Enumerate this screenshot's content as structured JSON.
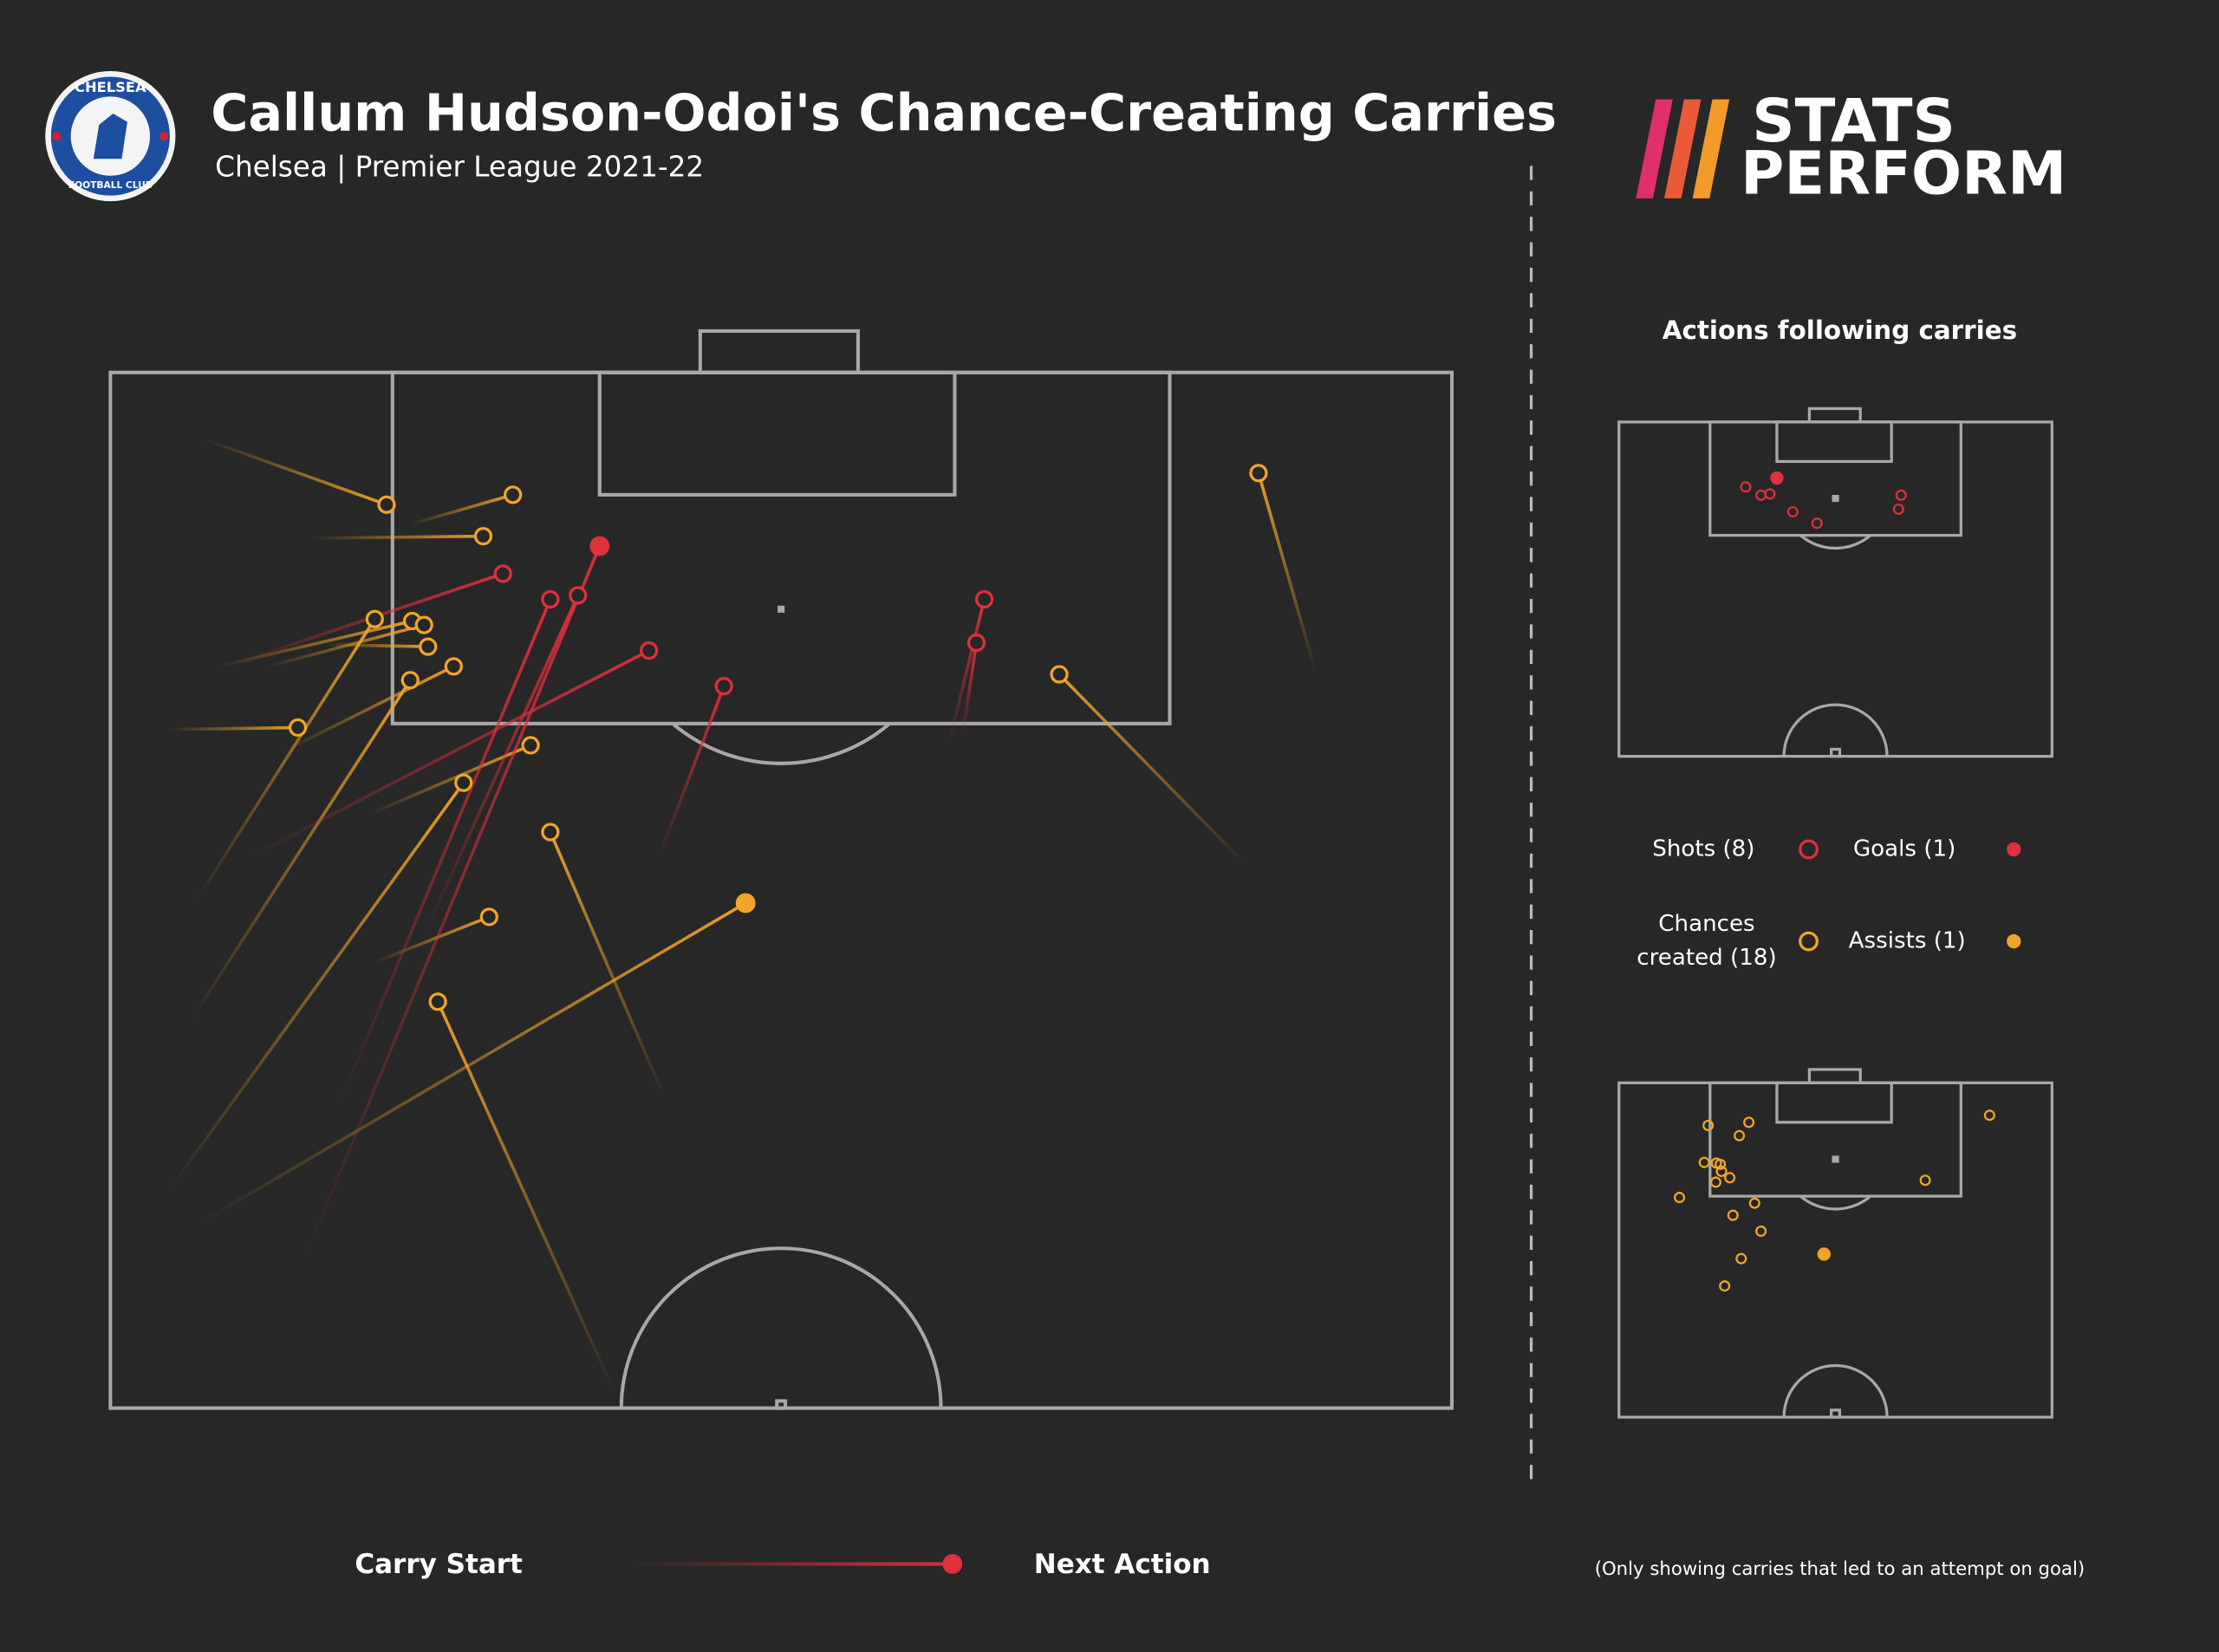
{
  "header": {
    "title": "Callum Hudson-Odoi's Chance-Creating Carries",
    "subtitle": "Chelsea | Premier League 2021-22",
    "crest_top": "CHELSEA",
    "crest_bottom": "FOOTBALL CLUB"
  },
  "brand": {
    "line1": "STATS",
    "line2": "PERFORM"
  },
  "side_title": "Actions following carries",
  "legend": {
    "shots": "Shots (8)",
    "goals": "Goals (1)",
    "chances": [
      "Chances",
      "created (18)"
    ],
    "assists": "Assists (1)"
  },
  "key": {
    "start": "Carry Start",
    "end": "Next Action"
  },
  "note": "(Only showing carries that led to an attempt on goal)",
  "shots": [
    {
      "start_x": 9.8,
      "start_y": 45.0,
      "end_x": 24.8,
      "end_y": 8.8,
      "goal": true
    },
    {
      "start_x": 5.9,
      "start_y": 14.9,
      "end_x": 19.9,
      "end_y": 10.2,
      "goal": false
    },
    {
      "start_x": 11.6,
      "start_y": 37.1,
      "end_x": 22.3,
      "end_y": 11.5,
      "goal": false
    },
    {
      "start_x": 15.9,
      "start_y": 28.5,
      "end_x": 23.7,
      "end_y": 11.3,
      "goal": false
    },
    {
      "start_x": 7.0,
      "start_y": 24.6,
      "end_x": 27.3,
      "end_y": 14.1,
      "goal": false
    },
    {
      "start_x": 27.8,
      "start_y": 24.6,
      "end_x": 31.1,
      "end_y": 15.9,
      "goal": false
    },
    {
      "start_x": 42.5,
      "start_y": 18.8,
      "end_x": 44.3,
      "end_y": 11.5,
      "goal": false
    },
    {
      "start_x": 43.2,
      "start_y": 18.4,
      "end_x": 43.9,
      "end_y": 13.7,
      "goal": false
    }
  ],
  "chances": [
    {
      "start_x": 4.8,
      "start_y": 3.4,
      "end_x": 14.0,
      "end_y": 6.7,
      "assist": false
    },
    {
      "start_x": 15.2,
      "start_y": 7.7,
      "end_x": 20.4,
      "end_y": 6.2,
      "assist": false
    },
    {
      "start_x": 10.2,
      "start_y": 8.4,
      "end_x": 18.9,
      "end_y": 8.3,
      "assist": false
    },
    {
      "start_x": 4.4,
      "start_y": 26.7,
      "end_x": 13.4,
      "end_y": 12.5,
      "assist": false
    },
    {
      "start_x": 5.5,
      "start_y": 14.9,
      "end_x": 15.3,
      "end_y": 12.6,
      "assist": false
    },
    {
      "start_x": 8.0,
      "start_y": 14.9,
      "end_x": 15.9,
      "end_y": 12.8,
      "assist": false
    },
    {
      "start_x": 10.9,
      "start_y": 13.8,
      "end_x": 16.1,
      "end_y": 13.9,
      "assist": false
    },
    {
      "start_x": 4.1,
      "start_y": 32.8,
      "end_x": 15.2,
      "end_y": 15.6,
      "assist": false
    },
    {
      "start_x": 8.8,
      "start_y": 19.2,
      "end_x": 17.4,
      "end_y": 14.9,
      "assist": false
    },
    {
      "start_x": 3.0,
      "start_y": 18.1,
      "end_x": 9.5,
      "end_y": 18.0,
      "assist": false
    },
    {
      "start_x": 13.1,
      "start_y": 22.4,
      "end_x": 21.3,
      "end_y": 18.9,
      "assist": false
    },
    {
      "start_x": 3.0,
      "start_y": 41.4,
      "end_x": 17.9,
      "end_y": 20.8,
      "assist": false
    },
    {
      "start_x": 28.1,
      "start_y": 36.8,
      "end_x": 22.3,
      "end_y": 23.3,
      "assist": false
    },
    {
      "start_x": 13.4,
      "start_y": 29.9,
      "end_x": 19.2,
      "end_y": 27.6,
      "assist": false
    },
    {
      "start_x": 25.6,
      "start_y": 51.8,
      "end_x": 16.6,
      "end_y": 31.9,
      "assist": false
    },
    {
      "start_x": 4.4,
      "start_y": 43.2,
      "end_x": 32.2,
      "end_y": 26.9,
      "assist": true
    },
    {
      "start_x": 61.1,
      "start_y": 15.2,
      "end_x": 58.2,
      "end_y": 5.1,
      "assist": false
    },
    {
      "start_x": 57.5,
      "start_y": 24.9,
      "end_x": 48.1,
      "end_y": 15.3,
      "assist": false
    }
  ],
  "colors": {
    "shot": "#e0303c",
    "chance": "#f2a42a"
  }
}
